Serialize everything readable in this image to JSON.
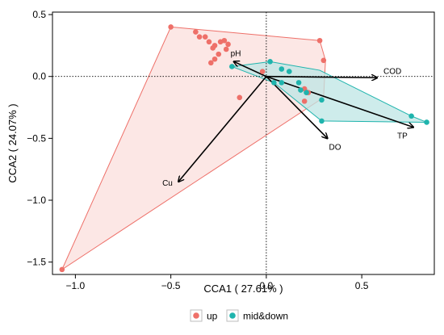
{
  "chart_data": {
    "type": "scatter",
    "xlabel": "CCA1 ( 27.61% )",
    "ylabel": "CCA2 ( 24.07% )",
    "xlim": [
      -1.12,
      0.88
    ],
    "ylim": [
      -1.6,
      0.52
    ],
    "x_ticks": [
      -1.0,
      -0.5,
      0.0,
      0.5
    ],
    "x_tick_labels": [
      "−1.0",
      "−0.5",
      "0.0",
      "0.5"
    ],
    "y_ticks": [
      0.5,
      0.0,
      -0.5,
      -1.0,
      -1.5
    ],
    "y_tick_labels": [
      "0.5",
      "0.0",
      "−0.5",
      "−1.0",
      "−1.5"
    ],
    "reference_lines": {
      "x": 0,
      "y": 0,
      "style": "dotted"
    },
    "series": [
      {
        "name": "up",
        "color": "#ee7069",
        "fill": "#fbe3e1",
        "points": [
          [
            -0.5,
            0.4
          ],
          [
            -0.37,
            0.36
          ],
          [
            -0.35,
            0.32
          ],
          [
            -0.32,
            0.32
          ],
          [
            -0.3,
            0.28
          ],
          [
            -0.27,
            0.25
          ],
          [
            -0.24,
            0.28
          ],
          [
            -0.22,
            0.29
          ],
          [
            -0.28,
            0.23
          ],
          [
            -0.25,
            0.18
          ],
          [
            -0.27,
            0.14
          ],
          [
            -0.29,
            0.11
          ],
          [
            -0.2,
            0.26
          ],
          [
            -0.21,
            0.22
          ],
          [
            -0.14,
            -0.17
          ],
          [
            -0.02,
            0.04
          ],
          [
            0.28,
            0.29
          ],
          [
            0.3,
            0.13
          ],
          [
            0.2,
            -0.1
          ],
          [
            0.22,
            -0.13
          ],
          [
            0.2,
            -0.2
          ],
          [
            -1.07,
            -1.56
          ]
        ],
        "hull": [
          [
            -0.5,
            0.4
          ],
          [
            0.28,
            0.29
          ],
          [
            0.31,
            0.13
          ],
          [
            0.3,
            -0.17
          ],
          [
            -1.07,
            -1.56
          ]
        ]
      },
      {
        "name": "mid&down",
        "color": "#1fb4ad",
        "fill": "#bde6e4",
        "points": [
          [
            -0.18,
            0.08
          ],
          [
            0.02,
            0.12
          ],
          [
            0.08,
            0.06
          ],
          [
            0.12,
            0.04
          ],
          [
            0.04,
            -0.05
          ],
          [
            0.08,
            -0.05
          ],
          [
            0.17,
            -0.05
          ],
          [
            0.18,
            -0.11
          ],
          [
            0.21,
            -0.13
          ],
          [
            0.29,
            -0.19
          ],
          [
            0.29,
            -0.36
          ],
          [
            0.76,
            -0.32
          ],
          [
            0.84,
            -0.37
          ]
        ],
        "hull": [
          [
            -0.18,
            0.08
          ],
          [
            0.02,
            0.12
          ],
          [
            0.28,
            0.05
          ],
          [
            0.76,
            -0.32
          ],
          [
            0.84,
            -0.37
          ],
          [
            0.29,
            -0.36
          ],
          [
            0.04,
            -0.05
          ]
        ]
      }
    ],
    "arrows": [
      {
        "label": "COD",
        "x": 0.58,
        "y": -0.01
      },
      {
        "label": "pH",
        "x": -0.17,
        "y": 0.12
      },
      {
        "label": "DO",
        "x": 0.32,
        "y": -0.5
      },
      {
        "label": "TP",
        "x": 0.77,
        "y": -0.41
      },
      {
        "label": "Cu",
        "x": -0.46,
        "y": -0.85
      }
    ],
    "legend": {
      "position": "bottom",
      "entries": [
        "up",
        "mid&down"
      ]
    }
  }
}
